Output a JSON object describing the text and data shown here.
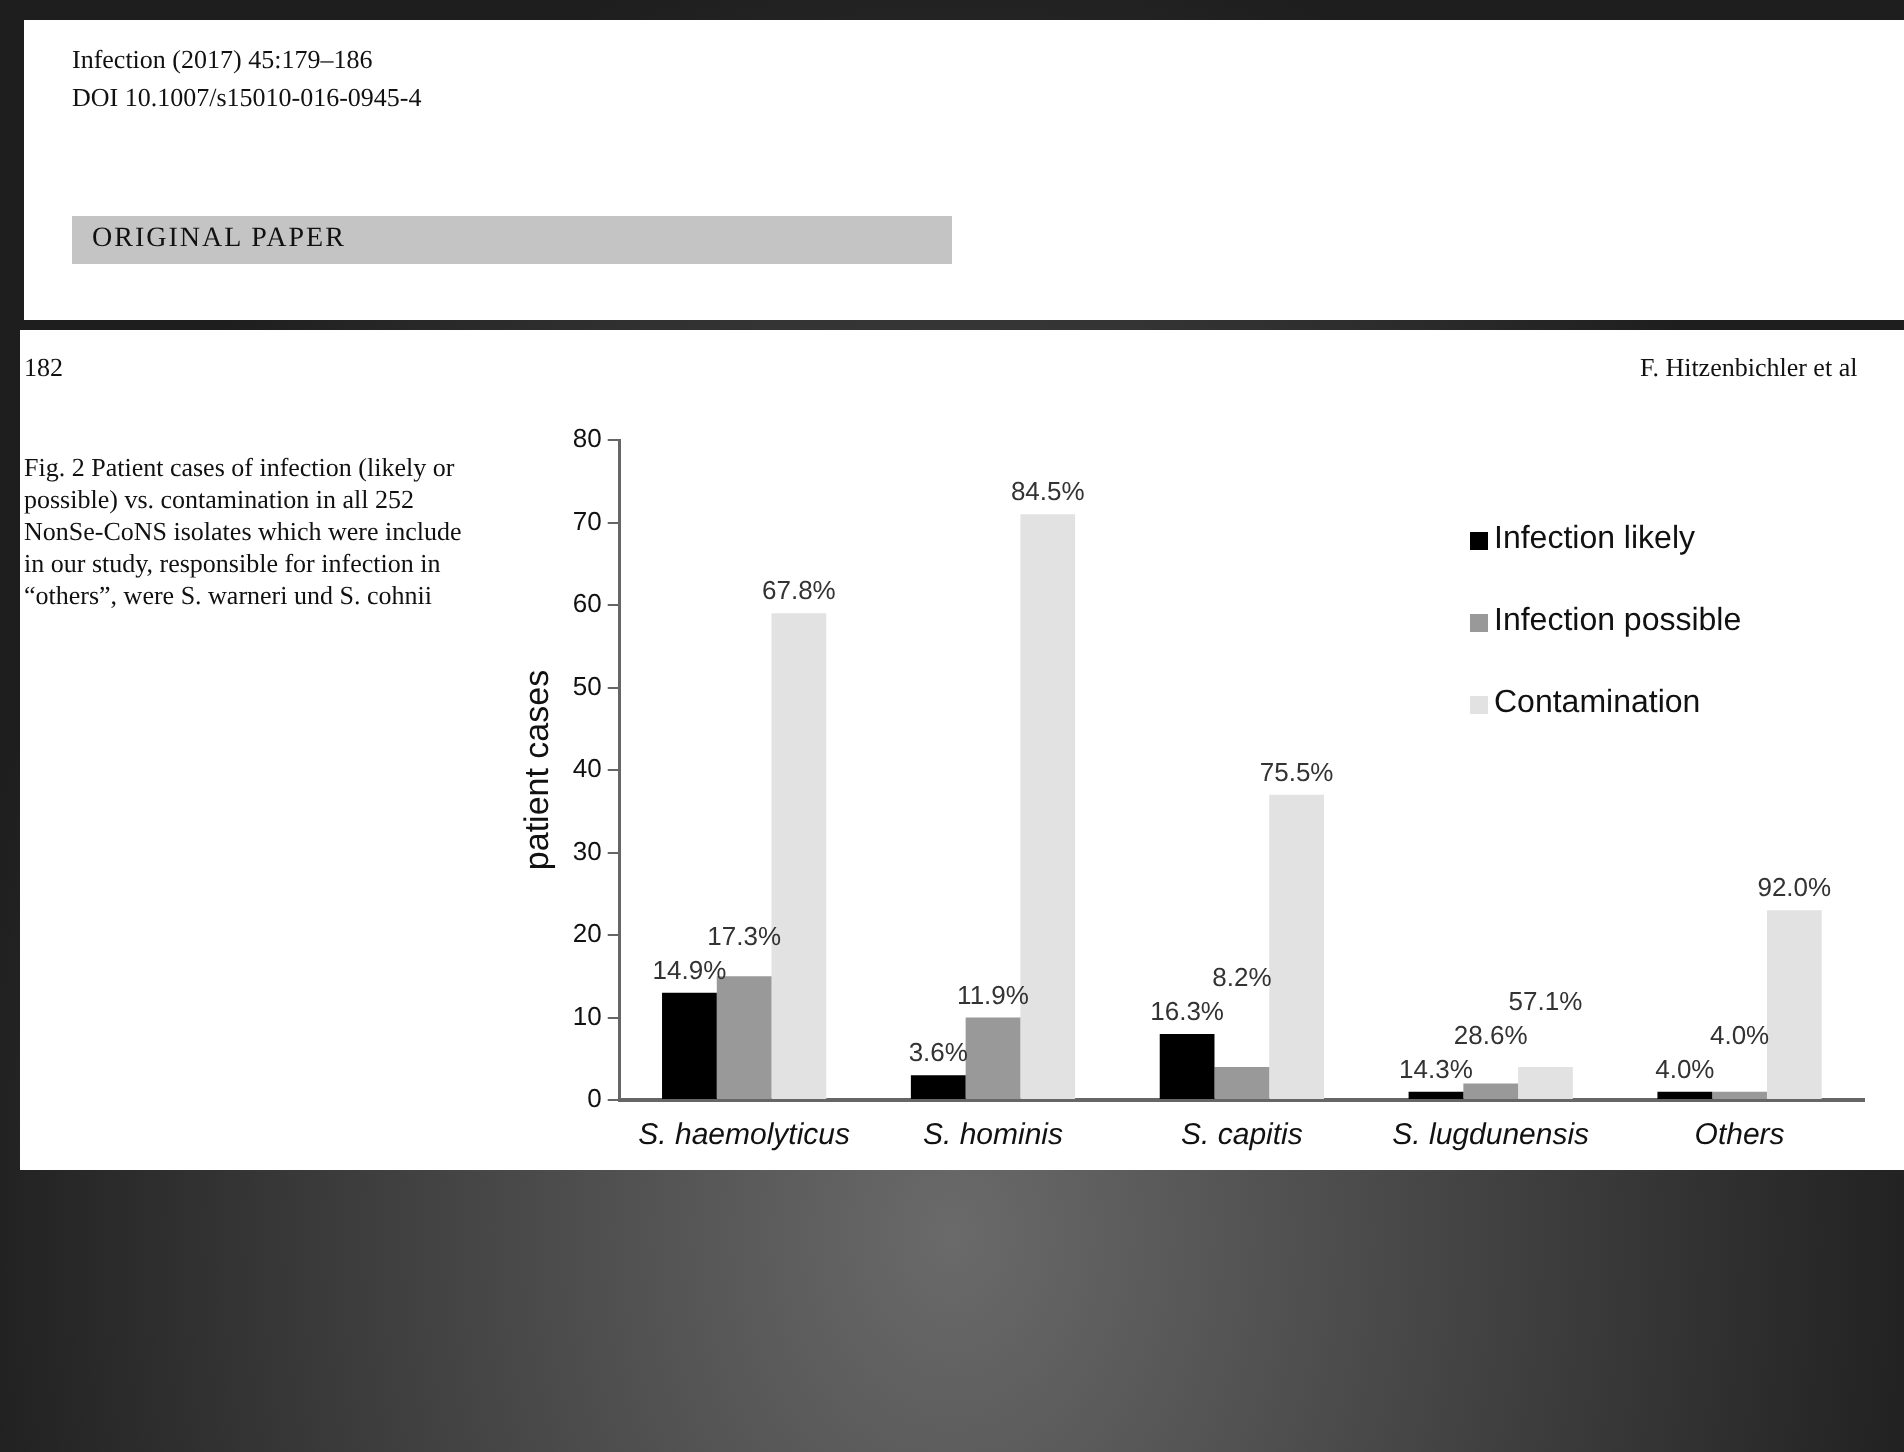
{
  "chart_data": {
    "type": "bar",
    "ylabel": "patient cases",
    "categories": [
      "S. haemolyticus",
      "S. hominis",
      "S. capitis",
      "S. lugdunensis",
      "Others"
    ],
    "series": [
      {
        "name": "Infection likely",
        "color": "#000000",
        "values": [
          13,
          3,
          8,
          1,
          1
        ]
      },
      {
        "name": "Infection possible",
        "color": "#999999",
        "values": [
          15,
          10,
          4,
          2,
          1
        ]
      },
      {
        "name": "Contamination",
        "color": "#e2e2e2",
        "values": [
          59,
          71,
          37,
          4,
          23
        ]
      }
    ],
    "ylim": [
      0,
      80
    ],
    "yticks": [
      0,
      10,
      20,
      30,
      40,
      50,
      60,
      70,
      80
    ],
    "grid": false,
    "legend": "top right",
    "annotations": [
      "Infection (2017) 45:179–186",
      "DOI 10.1007/s15010-016-0945-4",
      "ORIGINAL PAPER",
      "182",
      "F. Hitzenbichler et al",
      "Fig. 2 Patient cases of infection (likely or possible) vs. contamination in all 252 NonSe-CoNS isolates which were include in our study, responsible for infection in “others”, were S. warneri und S. cohnii",
      "14.9%",
      "17.3%",
      "67.8%",
      "3.6%",
      "11.9%",
      "84.5%",
      "16.3%",
      "8.2%",
      "75.5%",
      "14.3%",
      "28.6%",
      "57.1%",
      "4.0%",
      "4.0%",
      "92.0%"
    ]
  }
}
